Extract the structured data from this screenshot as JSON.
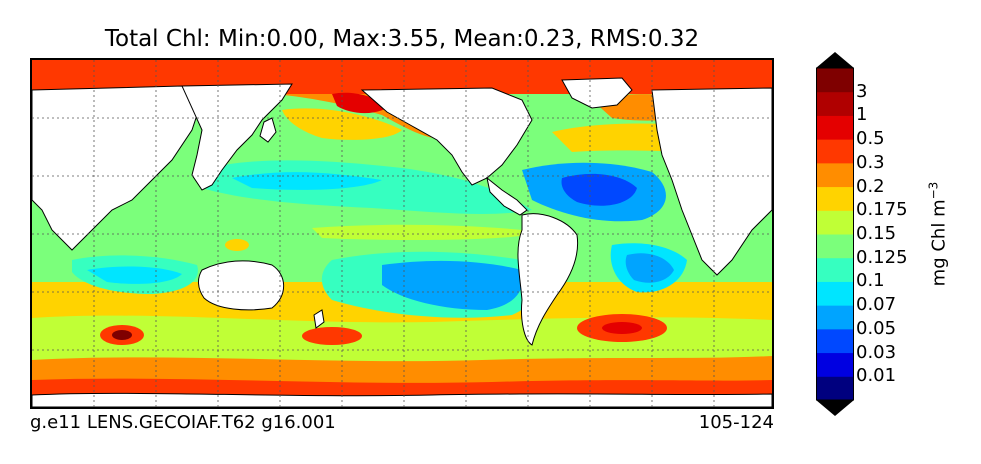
{
  "title": "Total Chl: Min:0.00, Max:3.55, Mean:0.23, RMS:0.32",
  "caption_left": "g.e11 LENS.GECOIAF.T62 g16.001",
  "caption_right": "105-124",
  "colorbar": {
    "unit_text": "mg Chl m",
    "unit_exponent": "−3",
    "levels": [
      "0.01",
      "0.03",
      "0.05",
      "0.07",
      "0.1",
      "0.125",
      "0.15",
      "0.175",
      "0.2",
      "0.3",
      "0.5",
      "1",
      "3"
    ],
    "colors": [
      "#00007f",
      "#0000e1",
      "#0048ff",
      "#00a4ff",
      "#00e5ff",
      "#36ffc0",
      "#7bff7b",
      "#c0ff36",
      "#ffd300",
      "#ff8d00",
      "#ff3800",
      "#e40000",
      "#7f0000"
    ]
  },
  "palette": {
    "land": "#ffffff",
    "grid": "#555555",
    "coast": "#000000"
  }
}
